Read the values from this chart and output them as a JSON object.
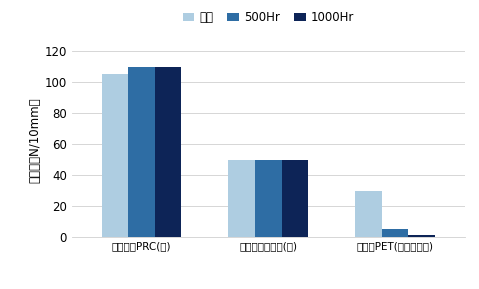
{
  "categories": [
    "ダイレオPRC(白)",
    "汎用フッ素塗料(白)",
    "未塗工PET(コロナ処理)"
  ],
  "series": [
    {
      "label": "初期",
      "color": "#aecde1",
      "values": [
        105,
        50,
        30
      ]
    },
    {
      "label": "500Hr",
      "color": "#2e6da4",
      "values": [
        110,
        50,
        5
      ]
    },
    {
      "label": "1000Hr",
      "color": "#0d2457",
      "values": [
        110,
        50,
        1.5
      ]
    }
  ],
  "ylabel": "接着力（N/10mm）",
  "ylim": [
    0,
    125
  ],
  "yticks": [
    0,
    20,
    40,
    60,
    80,
    100,
    120
  ],
  "bar_width": 0.21,
  "background_color": "#ffffff",
  "grid_color": "#d0d0d0",
  "font_size": 8.5,
  "label_font_size": 7.5,
  "legend_font_size": 8.5
}
